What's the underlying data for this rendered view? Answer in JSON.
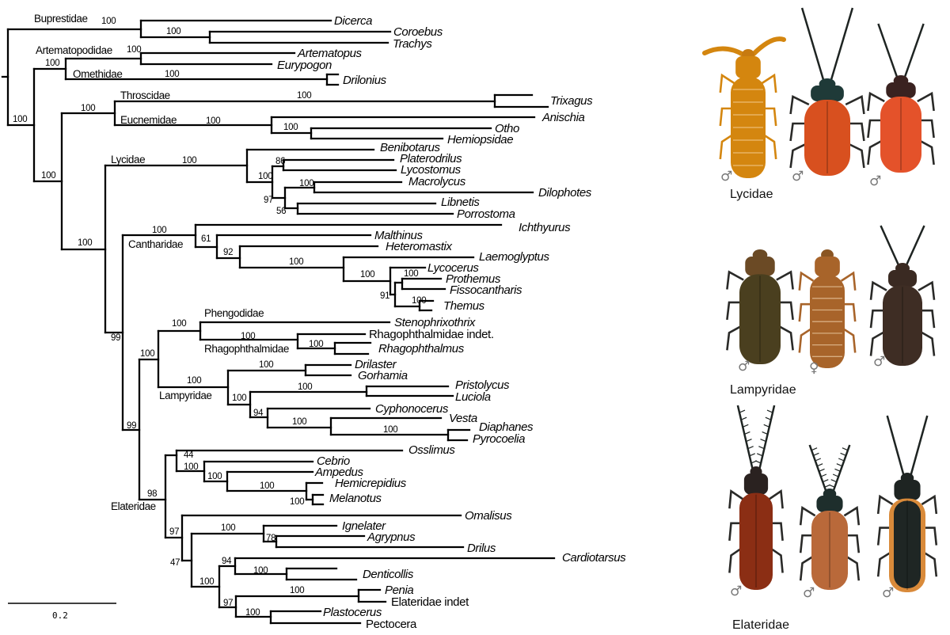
{
  "tree": {
    "clade_labels": [
      "Buprestidae",
      "Artematopodidae",
      "Omethidae",
      "Throscidae",
      "Eucnemidae",
      "Lycidae",
      "Cantharidae",
      "Phengodidae",
      "Rhagophthalmidae",
      "Lampyridae",
      "Elateridae"
    ],
    "taxa": [
      {
        "name": "Dicerca",
        "italic": true
      },
      {
        "name": "Coroebus",
        "italic": true
      },
      {
        "name": "Trachys",
        "italic": true
      },
      {
        "name": "Artematopus",
        "italic": true
      },
      {
        "name": "Eurypogon",
        "italic": true
      },
      {
        "name": "Drilonius",
        "italic": true
      },
      {
        "name": "Trixagus",
        "italic": true
      },
      {
        "name": "Anischia",
        "italic": true
      },
      {
        "name": "Otho",
        "italic": true
      },
      {
        "name": "Hemiopsidae",
        "italic": true
      },
      {
        "name": "Benibotarus",
        "italic": true
      },
      {
        "name": "Platerodrilus",
        "italic": true
      },
      {
        "name": "Lycostomus",
        "italic": true
      },
      {
        "name": "Macrolycus",
        "italic": true
      },
      {
        "name": "Dilophotes",
        "italic": true
      },
      {
        "name": "Libnetis",
        "italic": true
      },
      {
        "name": "Porrostoma",
        "italic": true
      },
      {
        "name": "Ichthyurus",
        "italic": true
      },
      {
        "name": "Malthinus",
        "italic": true
      },
      {
        "name": "Heteromastix",
        "italic": true
      },
      {
        "name": "Laemoglyptus",
        "italic": true
      },
      {
        "name": "Lycocerus",
        "italic": true
      },
      {
        "name": "Prothemus",
        "italic": true
      },
      {
        "name": "Fissocantharis",
        "italic": true
      },
      {
        "name": "Themus",
        "italic": true
      },
      {
        "name": "Stenophrixothrix",
        "italic": true
      },
      {
        "name": "Rhagophthalmidae indet.",
        "italic": false
      },
      {
        "name": "Rhagophthalmus",
        "italic": true
      },
      {
        "name": "Drilaster",
        "italic": true
      },
      {
        "name": "Gorhamia",
        "italic": true
      },
      {
        "name": "Pristolycus",
        "italic": true
      },
      {
        "name": "Luciola",
        "italic": true
      },
      {
        "name": "Cyphonocerus",
        "italic": true
      },
      {
        "name": "Vesta",
        "italic": true
      },
      {
        "name": "Diaphanes",
        "italic": true
      },
      {
        "name": "Pyrocoelia",
        "italic": true
      },
      {
        "name": "Osslimus",
        "italic": true
      },
      {
        "name": "Cebrio",
        "italic": true
      },
      {
        "name": "Ampedus",
        "italic": true
      },
      {
        "name": "Hemicrepidius",
        "italic": true
      },
      {
        "name": "Melanotus",
        "italic": true
      },
      {
        "name": "Omalisus",
        "italic": true
      },
      {
        "name": "Ignelater",
        "italic": true
      },
      {
        "name": "Agrypnus",
        "italic": true
      },
      {
        "name": "Drilus",
        "italic": true
      },
      {
        "name": "Cardiotarsus",
        "italic": true
      },
      {
        "name": "Denticollis",
        "italic": true
      },
      {
        "name": "Penia",
        "italic": true
      },
      {
        "name": "Elateridae indet",
        "italic": false
      },
      {
        "name": "Plastocerus",
        "italic": true
      },
      {
        "name": "Pectocera",
        "italic": false
      }
    ],
    "support_values": [
      "100",
      "100",
      "100",
      "100",
      "100",
      "100",
      "100",
      "100",
      "100",
      "100",
      "100",
      "100",
      "100",
      "86",
      "100",
      "100",
      "97",
      "56",
      "100",
      "61",
      "92",
      "100",
      "100",
      "100",
      "91",
      "100",
      "99",
      "100",
      "100",
      "100",
      "100",
      "100",
      "100",
      "100",
      "100",
      "94",
      "100",
      "100",
      "99",
      "44",
      "100",
      "100",
      "100",
      "100",
      "98",
      "97",
      "100",
      "78",
      "47",
      "94",
      "100",
      "100",
      "97",
      "100",
      "100"
    ],
    "scale_bar": {
      "label": "0.2",
      "value": 0.2
    }
  },
  "photos": {
    "panels": [
      {
        "caption": "Lycidae",
        "specimens": [
          {
            "sex": "♂",
            "body_color": "#d4860f",
            "head_color": "#c77a10",
            "type": "larviform"
          },
          {
            "sex": "♂",
            "body_color": "#d8501f",
            "head_color": "#1f3a38",
            "type": "winged"
          },
          {
            "sex": "♂",
            "body_color": "#e4522a",
            "head_color": "#3a2220",
            "type": "winged"
          }
        ]
      },
      {
        "caption": "Lampyridae",
        "specimens": [
          {
            "sex": "♂",
            "body_color": "#4a3f1f",
            "head_color": "#6b4a25",
            "type": "winged"
          },
          {
            "sex": "♀",
            "body_color": "#a8642a",
            "head_color": "#8a5522",
            "type": "larviform"
          },
          {
            "sex": "♂",
            "body_color": "#3e2d24",
            "head_color": "#3a2a22",
            "type": "winged"
          }
        ]
      },
      {
        "caption": "Elateridae",
        "specimens": [
          {
            "sex": "♂",
            "body_color": "#8b2e14",
            "head_color": "#2a2220",
            "type": "pectinate"
          },
          {
            "sex": "♂",
            "body_color": "#b9693a",
            "head_color": "#1e2e2c",
            "type": "pectinate"
          },
          {
            "sex": "♂",
            "body_color": "#1f2624",
            "head_color": "#1e2422",
            "type": "margined",
            "margin_color": "#d98a3a"
          }
        ]
      }
    ]
  }
}
